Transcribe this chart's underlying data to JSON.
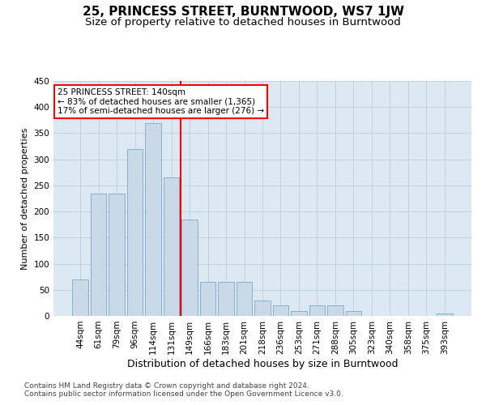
{
  "title": "25, PRINCESS STREET, BURNTWOOD, WS7 1JW",
  "subtitle": "Size of property relative to detached houses in Burntwood",
  "xlabel": "Distribution of detached houses by size in Burntwood",
  "ylabel": "Number of detached properties",
  "categories": [
    "44sqm",
    "61sqm",
    "79sqm",
    "96sqm",
    "114sqm",
    "131sqm",
    "149sqm",
    "166sqm",
    "183sqm",
    "201sqm",
    "218sqm",
    "236sqm",
    "253sqm",
    "271sqm",
    "288sqm",
    "305sqm",
    "323sqm",
    "340sqm",
    "358sqm",
    "375sqm",
    "393sqm"
  ],
  "values": [
    70,
    235,
    235,
    320,
    370,
    265,
    185,
    65,
    65,
    65,
    30,
    20,
    10,
    20,
    20,
    10,
    0,
    0,
    0,
    0,
    5
  ],
  "bar_color": "#c9d9e8",
  "bar_edge_color": "#7aaac8",
  "vline_index": 5,
  "annotation_line1": "25 PRINCESS STREET: 140sqm",
  "annotation_line2": "← 83% of detached houses are smaller (1,365)",
  "annotation_line3": "17% of semi-detached houses are larger (276) →",
  "annotation_box_color": "white",
  "annotation_box_edge_color": "red",
  "vline_color": "red",
  "ylim": [
    0,
    450
  ],
  "yticks": [
    0,
    50,
    100,
    150,
    200,
    250,
    300,
    350,
    400,
    450
  ],
  "grid_color": "#b8cfe0",
  "background_color": "#dce8f2",
  "footer_line1": "Contains HM Land Registry data © Crown copyright and database right 2024.",
  "footer_line2": "Contains public sector information licensed under the Open Government Licence v3.0.",
  "title_fontsize": 11,
  "subtitle_fontsize": 9.5,
  "xlabel_fontsize": 9,
  "ylabel_fontsize": 8,
  "tick_fontsize": 7.5,
  "annotation_fontsize": 7.5,
  "footer_fontsize": 6.5
}
